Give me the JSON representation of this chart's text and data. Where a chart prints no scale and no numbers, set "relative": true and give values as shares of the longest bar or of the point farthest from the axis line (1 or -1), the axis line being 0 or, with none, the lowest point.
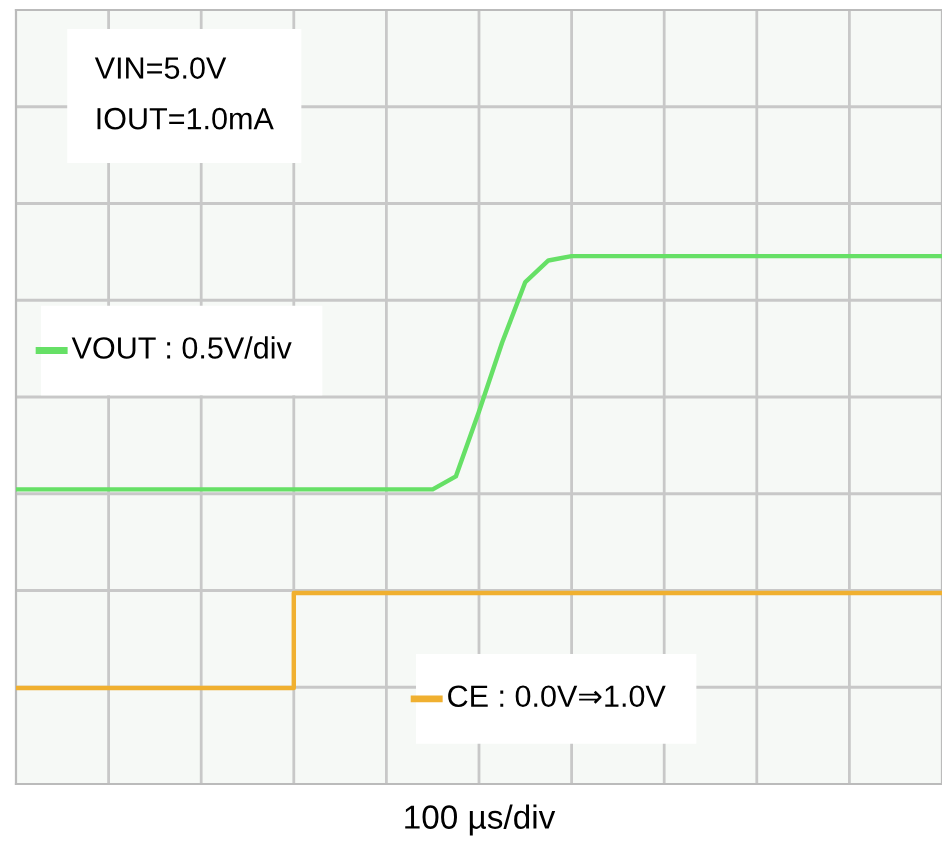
{
  "chart_data": {
    "type": "line",
    "relative": true,
    "xlabel": "100 µs/div",
    "grid": true,
    "legend": "left",
    "categories": [
      null,
      null,
      null,
      null,
      null,
      null,
      null,
      null,
      null,
      null,
      null,
      null,
      null,
      null,
      null,
      null,
      null,
      null,
      null,
      null,
      null,
      null,
      null,
      null,
      null,
      null,
      null,
      null,
      null,
      null,
      null,
      null,
      null,
      null,
      null,
      null,
      null,
      null,
      null,
      null,
      null
    ],
    "series": [
      {
        "name": "VOUT : 0.5V/div",
        "color": "#66e066",
        "values": [
          0.46,
          0.46,
          0.46,
          0.46,
          0.46,
          0.46,
          0.46,
          0.46,
          0.46,
          0.46,
          0.46,
          0.46,
          0.46,
          0.46,
          0.46,
          0.46,
          0.46,
          0.46,
          0.46,
          0.49,
          0.64,
          0.8,
          0.94,
          0.99,
          1,
          1,
          1,
          1,
          1,
          1,
          1,
          1,
          1,
          1,
          1,
          1,
          1,
          1,
          1,
          1,
          1
        ]
      },
      {
        "name": "CE : 0.0V⇒1.0V",
        "type": "step",
        "color": "#f0b030",
        "values": [
          0,
          0,
          0,
          0,
          0,
          0,
          0,
          0,
          0,
          0,
          0,
          0,
          0.22,
          0.22,
          0.22,
          0.22,
          0.22,
          0.22,
          0.22,
          0.22,
          0.22,
          0.22,
          0.22,
          0.22,
          0.22,
          0.22,
          0.22,
          0.22,
          0.22,
          0.22,
          0.22,
          0.22,
          0.22,
          0.22,
          0.22,
          0.22,
          0.22,
          0.22,
          0.22,
          0.22,
          0.22
        ]
      }
    ],
    "annotations": [
      "VIN=5.0V\nIOUT=1.0mA"
    ]
  }
}
